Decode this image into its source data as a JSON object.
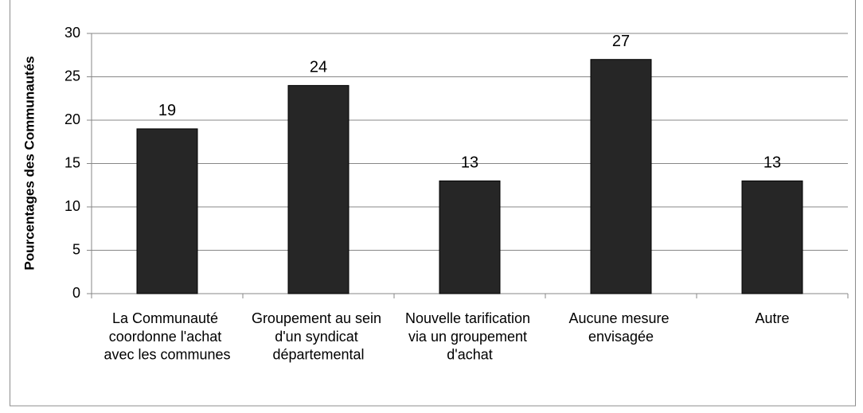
{
  "chart_data": {
    "type": "bar",
    "y_axis_label": "Pourcentages des Communautés",
    "categories": [
      "La Communauté coordonne l'achat avec les communes",
      "Groupement au sein d'un syndicat départemental",
      "Nouvelle tarification via un groupement d'achat",
      "Aucune mesure envisagée",
      "Autre"
    ],
    "values": [
      19,
      24,
      13,
      27,
      13
    ],
    "color": "#262626",
    "ylim": [
      0,
      30
    ],
    "yticks": [
      0,
      5,
      10,
      15,
      20,
      25,
      30
    ],
    "grid": true
  }
}
